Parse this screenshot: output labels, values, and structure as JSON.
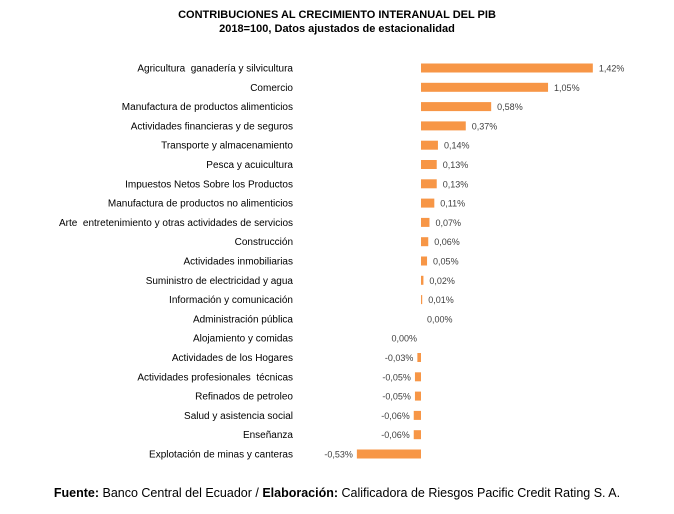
{
  "chart_data": {
    "type": "bar",
    "orientation": "horizontal",
    "title": "CONTRIBUCIONES AL CRECIMIENTO INTERANUAL DEL PIB",
    "subtitle": "2018=100, Datos ajustados de estacionalidad",
    "bar_color": "#F79646",
    "categories": [
      "Agricultura  ganadería y silvicultura",
      "Comercio",
      "Manufactura de productos alimenticios",
      "Actividades financieras y de seguros",
      "Transporte y almacenamiento",
      "Pesca y acuicultura",
      "Impuestos Netos Sobre los Productos",
      "Manufactura de productos no alimenticios",
      "Arte  entretenimiento y otras actividades de servicios",
      "Construcción",
      "Actividades inmobiliarias",
      "Suministro de electricidad y agua",
      "Información y comunicación",
      "Administración pública",
      "Alojamiento y comidas",
      "Actividades de los Hogares",
      "Actividades profesionales  técnicas",
      "Refinados de petroleo",
      "Salud y asistencia social",
      "Enseñanza",
      "Explotación de minas y canteras"
    ],
    "values": [
      1.42,
      1.05,
      0.58,
      0.37,
      0.14,
      0.13,
      0.13,
      0.11,
      0.07,
      0.06,
      0.05,
      0.02,
      0.01,
      0.0,
      0.0,
      -0.03,
      -0.05,
      -0.05,
      -0.06,
      -0.06,
      -0.53
    ],
    "data_labels": [
      "1,42%",
      "1,05%",
      "0,58%",
      "0,37%",
      "0,14%",
      "0,13%",
      "0,13%",
      "0,11%",
      "0,07%",
      "0,06%",
      "0,05%",
      "0,02%",
      "0,01%",
      "0,00%",
      "0,00%",
      "-0,03%",
      "-0,05%",
      "-0,05%",
      "-0,06%",
      "-0,06%",
      "-0,53%"
    ],
    "xlim": [
      -0.6,
      1.5
    ],
    "grid": false,
    "legend": "none"
  },
  "footer": {
    "source_label": "Fuente:",
    "source_text": " Banco Central del Ecuador / ",
    "elab_label": "Elaboración:",
    "elab_text": " Calificadora de Riesgos Pacific Credit Rating S. A."
  }
}
